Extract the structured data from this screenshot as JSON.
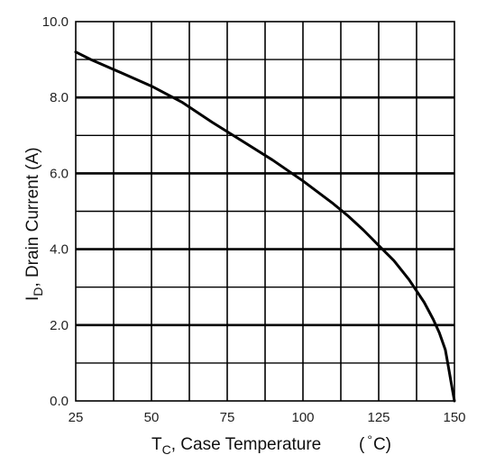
{
  "chart_data": {
    "type": "line",
    "title": "",
    "xlabel": {
      "main": "T",
      "sub": "C",
      "rest": ", Case Temperature",
      "unit_open": "(",
      "degree": "°",
      "unit_close": "C)"
    },
    "ylabel": {
      "main": "I",
      "sub": "D",
      "rest": ", Drain Current (A)"
    },
    "xlim": [
      25,
      150
    ],
    "ylim": [
      0,
      10
    ],
    "x_tick_values": [
      25,
      50,
      75,
      100,
      125,
      150
    ],
    "y_tick_values": [
      0,
      2,
      4,
      6,
      8,
      10
    ],
    "x_tick_labels": [
      "25",
      "50",
      "75",
      "100",
      "125",
      "150"
    ],
    "y_tick_labels": [
      "0.0",
      "2.0",
      "4.0",
      "6.0",
      "8.0",
      "10.0"
    ],
    "x_grid_step": 12.5,
    "y_grid_step": 1,
    "grid": true,
    "series": [
      {
        "color": "#000000",
        "x": [
          25,
          30,
          40,
          50,
          60,
          70,
          75,
          80,
          90,
          100,
          110,
          115,
          120,
          125,
          130,
          135,
          140,
          143,
          145,
          147,
          148,
          149,
          150
        ],
        "y": [
          9.2,
          9.0,
          8.65,
          8.3,
          7.88,
          7.35,
          7.1,
          6.85,
          6.35,
          5.8,
          5.2,
          4.87,
          4.5,
          4.1,
          3.7,
          3.2,
          2.6,
          2.15,
          1.8,
          1.35,
          0.9,
          0.45,
          0.0
        ]
      }
    ]
  }
}
